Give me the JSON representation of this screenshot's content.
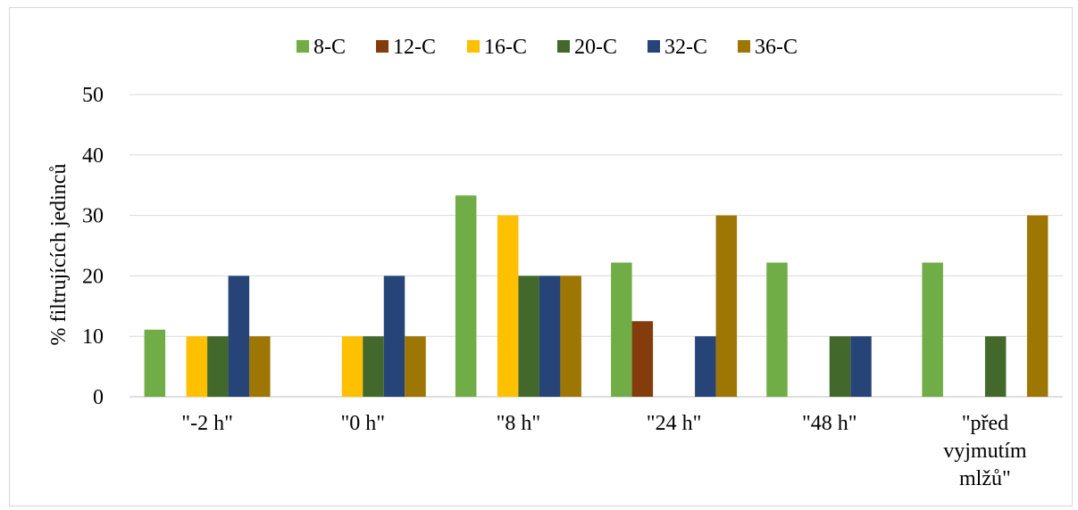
{
  "chart_data": {
    "type": "bar",
    "title": "",
    "xlabel": "",
    "ylabel": "% filtrujících jedinců",
    "ylim": [
      0,
      50
    ],
    "yticks": [
      0,
      10,
      20,
      30,
      40,
      50
    ],
    "grid": true,
    "legend_position": "top",
    "categories": [
      [
        "\"-2 h\""
      ],
      [
        "\"0 h\""
      ],
      [
        "\"8 h\""
      ],
      [
        "\"24 h\""
      ],
      [
        "\"48 h\""
      ],
      [
        "\"před",
        "vyjmutím",
        "mlžů\""
      ]
    ],
    "series": [
      {
        "name": "8-C",
        "color": "#70ad47",
        "values": [
          11.1,
          0,
          33.3,
          22.2,
          22.2,
          22.2
        ]
      },
      {
        "name": "12-C",
        "color": "#843c0c",
        "values": [
          0,
          0,
          0,
          12.5,
          0,
          0
        ]
      },
      {
        "name": "16-C",
        "color": "#ffc000",
        "values": [
          10,
          10,
          30,
          0,
          0,
          0
        ]
      },
      {
        "name": "20-C",
        "color": "#43682b",
        "values": [
          10,
          10,
          20,
          0,
          10,
          10
        ]
      },
      {
        "name": "32-C",
        "color": "#264478",
        "values": [
          20,
          20,
          20,
          10,
          10,
          0
        ]
      },
      {
        "name": "36-C",
        "color": "#9e7603",
        "values": [
          10,
          10,
          20,
          30,
          0,
          30
        ]
      }
    ]
  }
}
